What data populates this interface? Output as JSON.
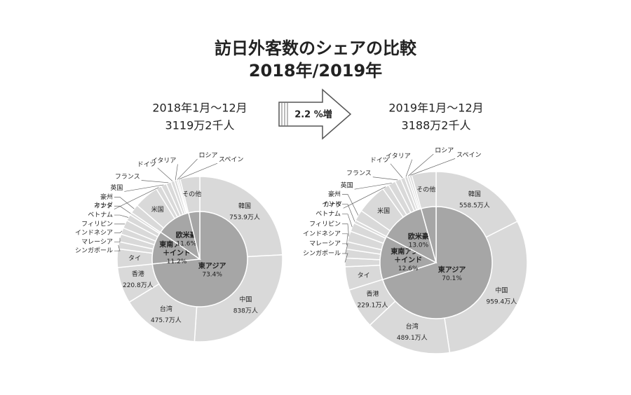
{
  "title": [
    "訪日外客数のシェアの比較",
    "2018年/2019年"
  ],
  "change_label": "2.2 %増",
  "chart_data": [
    {
      "type": "sunburst",
      "title": "2018年1月～12月",
      "subtitle": "3119万2千人",
      "inner_color": "#a6a6a6",
      "outer_color": "#d9d9d9",
      "inner": {
        "categories": [
          [
            "東アジア"
          ],
          [
            "東南アジア",
            "＋インド"
          ],
          [
            "欧米豪"
          ],
          null
        ],
        "values": [
          73.4,
          11.2,
          11.6,
          3.8
        ],
        "value_labels": [
          "73.4%",
          "11.2%",
          "11.6%",
          null
        ]
      },
      "outer": {
        "categories": [
          "韓国",
          "中国",
          "台湾",
          "香港",
          "タイ",
          "シンガポール",
          "マレーシア",
          "インドネシア",
          "フィリピン",
          "ベトナム",
          "インド",
          "豪州",
          "米国",
          "カナダ",
          "英国",
          "フランス",
          "ドイツ",
          "イタリア",
          "ロシア",
          "スペイン",
          "その他"
        ],
        "values": [
          753.9,
          838,
          475.7,
          220.8,
          113.2,
          43.7,
          46.9,
          39.7,
          50.4,
          38.9,
          15.4,
          55.2,
          152.6,
          33.1,
          33.4,
          30.5,
          21.5,
          15.0,
          9.5,
          11.9,
          119.9
        ],
        "value_labels": [
          "753.9万人",
          "838万人",
          "475.7万人",
          "220.8万人",
          null,
          null,
          null,
          null,
          null,
          null,
          null,
          null,
          null,
          null,
          null,
          null,
          null,
          null,
          null,
          null,
          null
        ]
      }
    },
    {
      "type": "sunburst",
      "title": "2019年1月～12月",
      "subtitle": "3188万2千人",
      "inner_color": "#a6a6a6",
      "outer_color": "#d9d9d9",
      "inner": {
        "categories": [
          [
            "東アジア"
          ],
          [
            "東南アジア",
            "＋インド"
          ],
          [
            "欧米豪"
          ],
          null
        ],
        "values": [
          70.1,
          12.6,
          13.0,
          4.3
        ],
        "value_labels": [
          "70.1%",
          "12.6%",
          "13.0%",
          null
        ]
      },
      "outer": {
        "categories": [
          "韓国",
          "中国",
          "台湾",
          "香港",
          "タイ",
          "シンガポール",
          "マレーシア",
          "インドネシア",
          "フィリピン",
          "ベトナム",
          "インド",
          "豪州",
          "米国",
          "カナダ",
          "英国",
          "フランス",
          "ドイツ",
          "イタリア",
          "ロシア",
          "スペイン",
          "その他"
        ],
        "values": [
          558.5,
          959.4,
          489.1,
          229.1,
          131.9,
          49.2,
          50.2,
          41.3,
          61.3,
          49.5,
          17.6,
          62.2,
          172.4,
          37.5,
          42.4,
          33.6,
          23.7,
          16.2,
          12.0,
          13.1,
          138.0
        ],
        "value_labels": [
          "558.5万人",
          "959.4万人",
          "489.1万人",
          "229.1万人",
          null,
          null,
          null,
          null,
          null,
          null,
          null,
          null,
          null,
          null,
          null,
          null,
          null,
          null,
          null,
          null,
          null
        ]
      }
    }
  ]
}
